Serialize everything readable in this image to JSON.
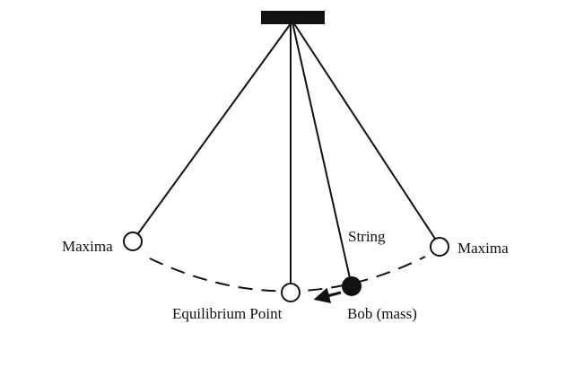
{
  "labels": {
    "maxima_left": "Maxima",
    "maxima_right": "Maxima",
    "equilibrium": "Equilibrium Point",
    "string": "String",
    "bob": "Bob (mass)"
  },
  "colors": {
    "ink": "#111111",
    "background": "#ffffff",
    "hollow_bob_fill": "#ffffff",
    "moving_bob_fill": "#111111"
  }
}
